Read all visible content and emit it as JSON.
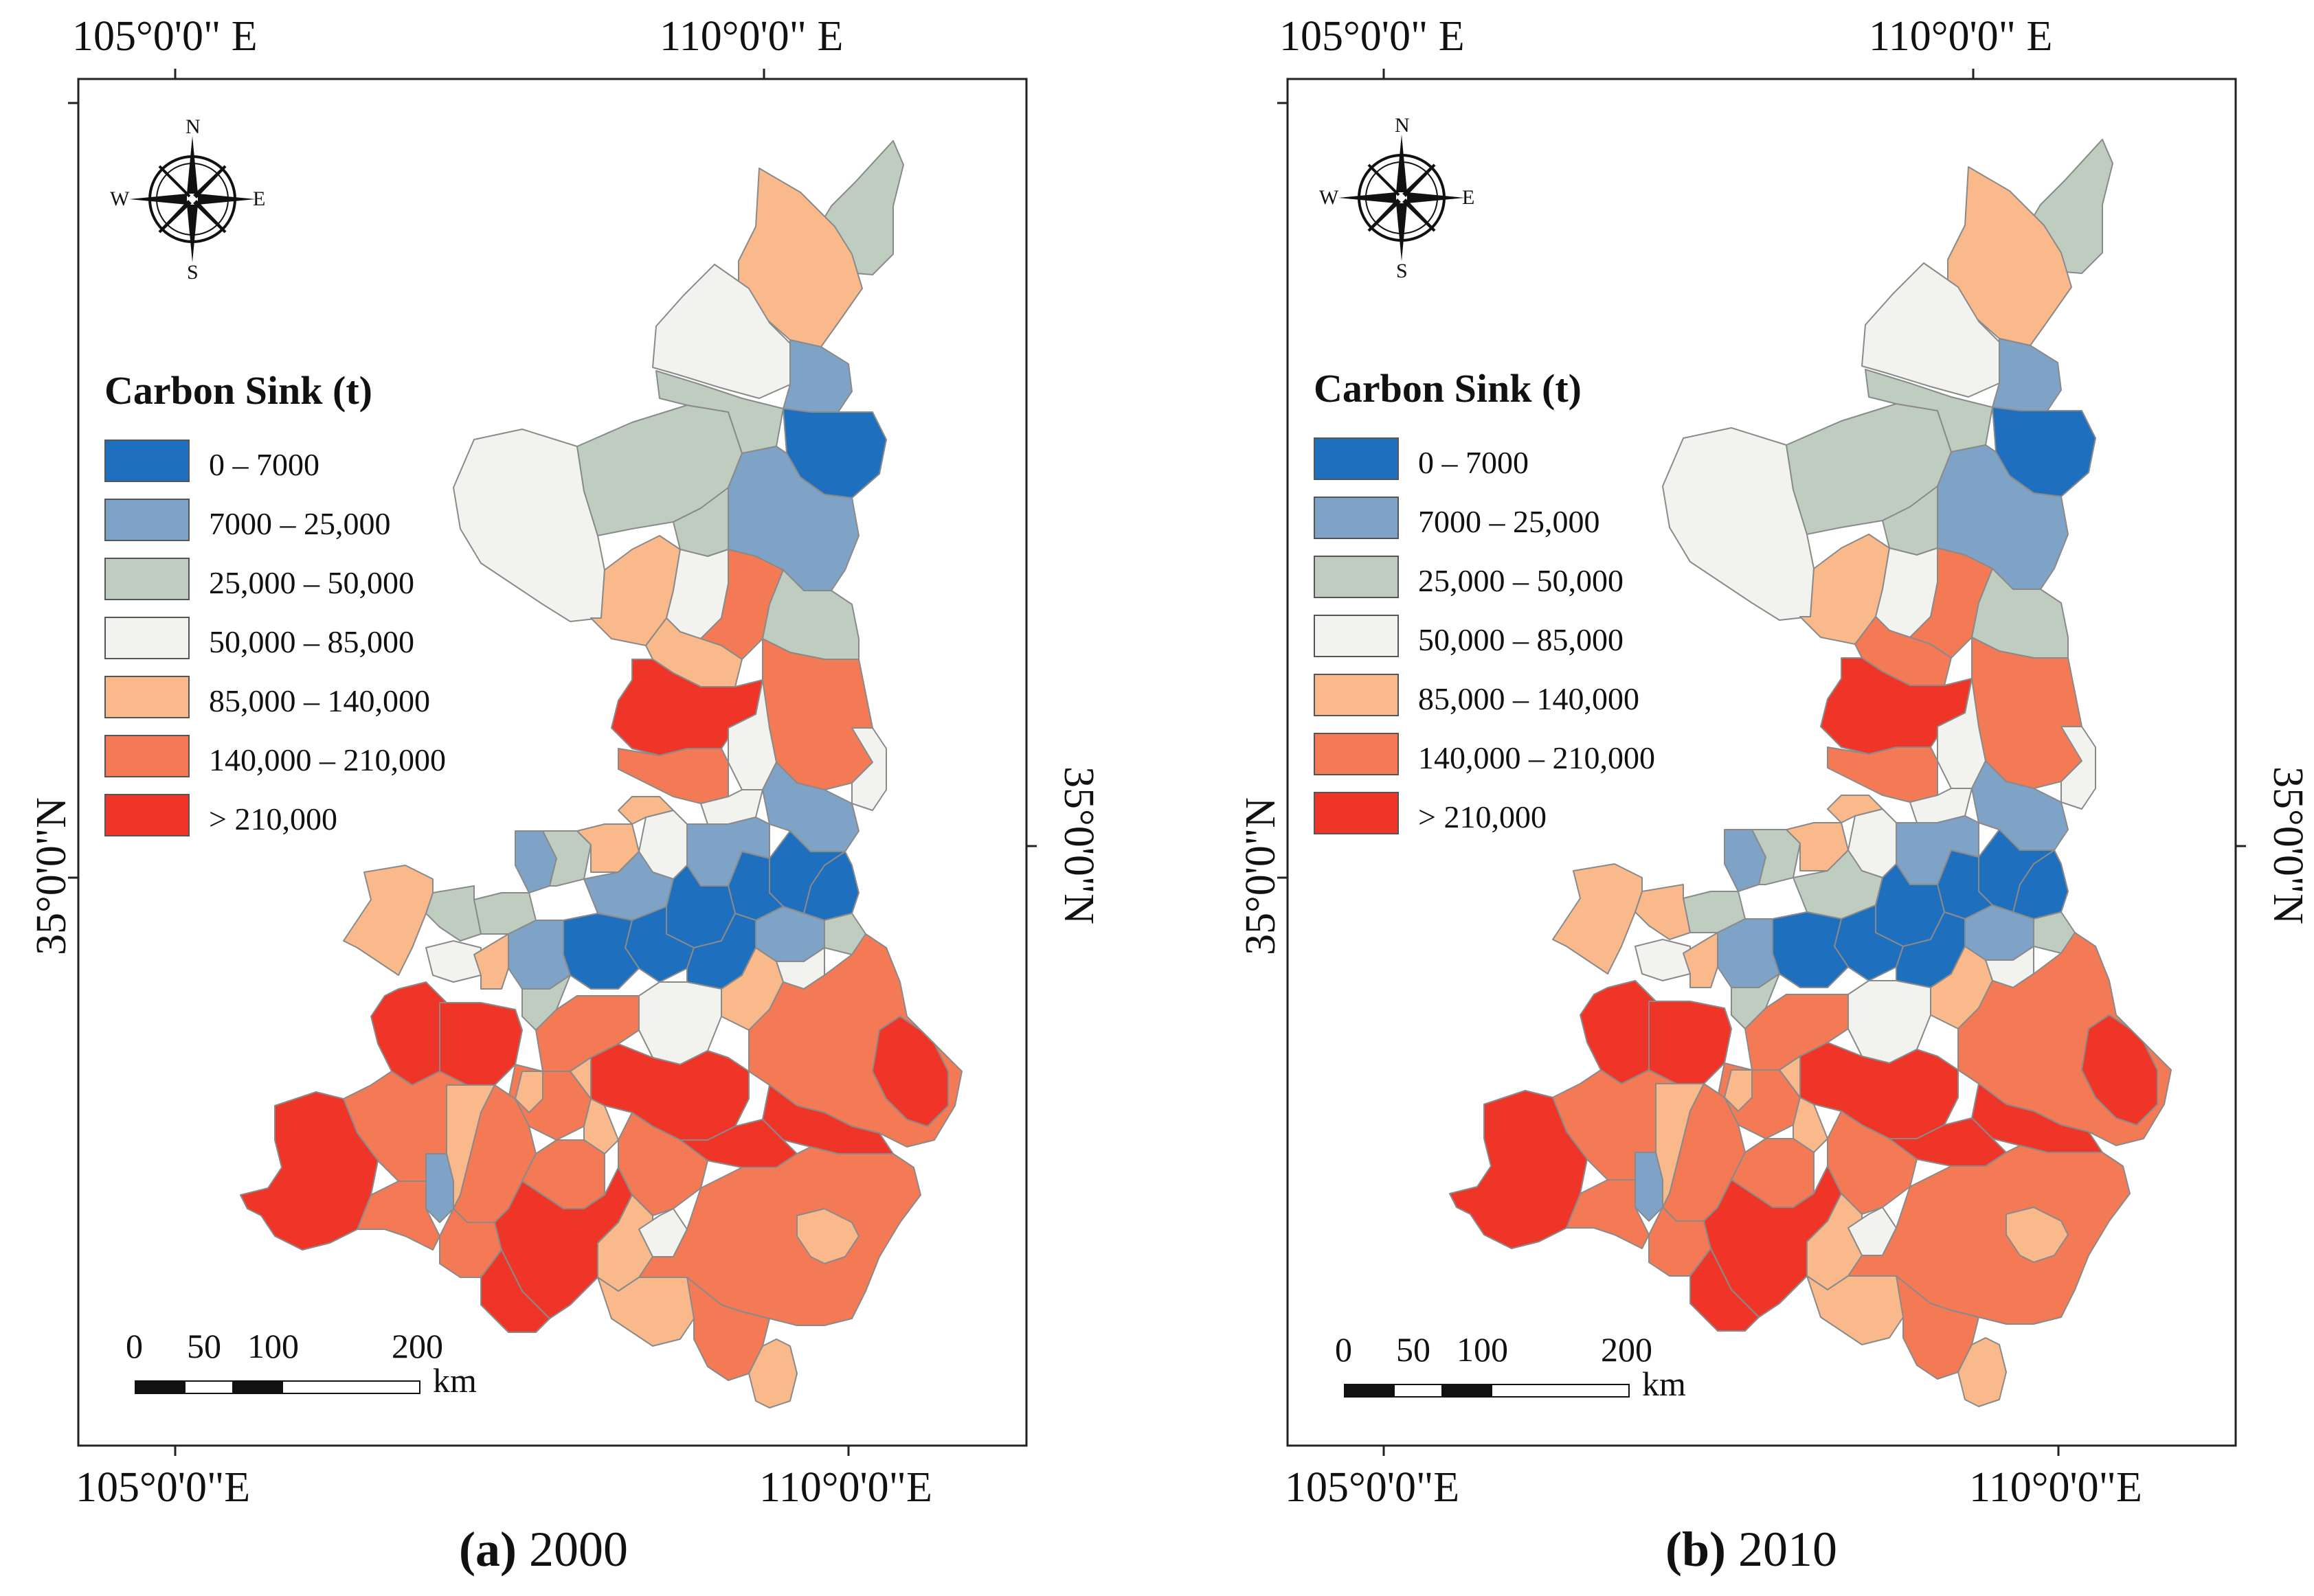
{
  "legend": {
    "title": "Carbon Sink (t)",
    "classes": [
      {
        "label": "0 – 7000",
        "color": "#1f6fbf"
      },
      {
        "label": "7000 – 25,000",
        "color": "#7fa3c6"
      },
      {
        "label": "25,000 – 50,000",
        "color": "#bfcdc0"
      },
      {
        "label": "50,000 – 85,000",
        "color": "#f2f2ee"
      },
      {
        "label": "85,000 – 140,000",
        "color": "#f9b98a"
      },
      {
        "label": "140,000 – 210,000",
        "color": "#f47a55"
      },
      {
        "label": "> 210,000",
        "color": "#ee3528"
      }
    ]
  },
  "graticule": {
    "top_left": "105°0'0\" E",
    "top_right": "110°0'0\" E",
    "bottom_left": "105°0'0\"E",
    "bottom_right": "110°0'0\"E",
    "left_lat": "35°0'0\"N",
    "right_lat": "35°0'0\"N"
  },
  "compass": {
    "n": "N",
    "s": "S",
    "e": "E",
    "w": "W"
  },
  "scale_bar": {
    "ticks": [
      "0",
      "50",
      "100",
      "200"
    ],
    "unit": "km"
  },
  "panels": [
    {
      "letter": "(a)",
      "year": "2000"
    },
    {
      "letter": "(b)",
      "year": "2010"
    }
  ]
}
